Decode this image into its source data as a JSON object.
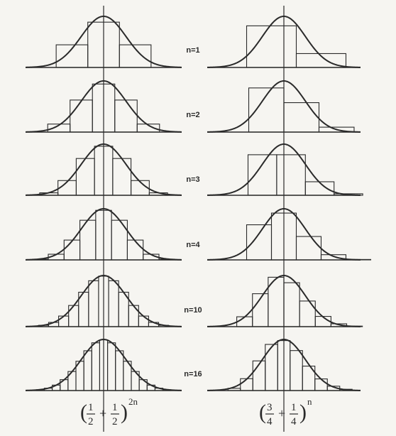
{
  "row_labels": [
    "n=1",
    "n=2",
    "n=3",
    "n=4",
    "n=10",
    "n=16"
  ],
  "left_caption": {
    "open": "(",
    "num1": "1",
    "den1": "2",
    "plus": "+",
    "num2": "1",
    "den2": "2",
    "close": ")",
    "exponent": "2n"
  },
  "right_caption": {
    "open": "(",
    "num1": "3",
    "den1": "4",
    "plus": "+",
    "num2": "1",
    "den2": "4",
    "close": ")",
    "exponent": "n"
  },
  "colors": {
    "ink": "#2a2a2a",
    "paper": "#f6f5f1"
  }
}
